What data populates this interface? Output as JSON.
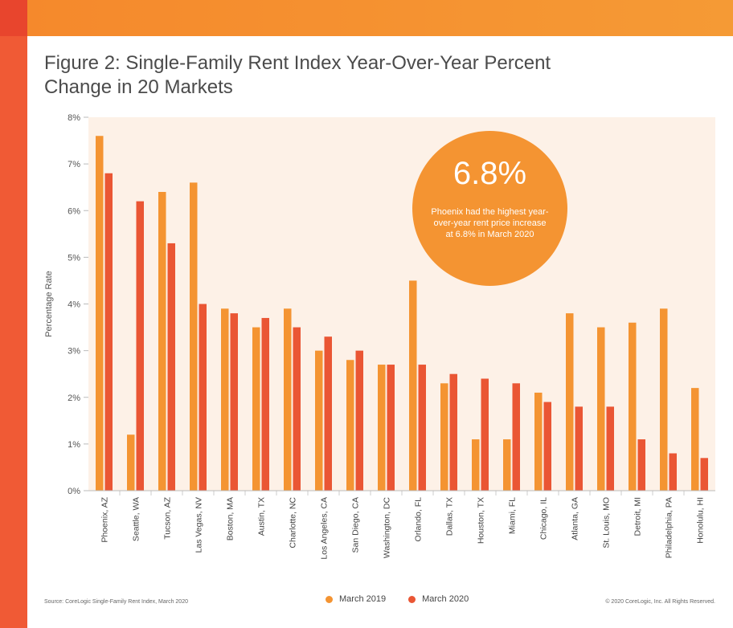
{
  "title": "Figure 2: Single-Family Rent Index Year-Over-Year Percent Change in 20 Markets",
  "source": "Source: CoreLogic Single-Family Rent Index, March 2020",
  "copyright": "© 2020 CoreLogic, Inc. All Rights Reserved.",
  "callout": {
    "value": "6.8%",
    "text": "Phoenix had the highest year-over-year rent price increase at 6.8% in March 2020"
  },
  "colors": {
    "series_2019": "#f49432",
    "series_2020": "#ea5634",
    "plot_bg": "#fdf1e7",
    "top_bar": "#f59a35",
    "left_bar": "#f05a35"
  },
  "chart_data": {
    "type": "bar",
    "ylabel": "Percentage Rate",
    "xlabel": "",
    "ylim": [
      0,
      8
    ],
    "yticks": [
      "0%",
      "1%",
      "2%",
      "3%",
      "4%",
      "5%",
      "6%",
      "7%",
      "8%"
    ],
    "legend_position": "bottom",
    "categories": [
      "Phoenix, AZ",
      "Seattle, WA",
      "Tucson, AZ",
      "Las Vegas, NV",
      "Boston, MA",
      "Austin, TX",
      "Charlotte, NC",
      "Los Angeles, CA",
      "San Diego, CA",
      "Washington, DC",
      "Orlando, FL",
      "Dallas, TX",
      "Houston, TX",
      "Miami, FL",
      "Chicago, IL",
      "Atlanta, GA",
      "St. Louis, MO",
      "Detroit, MI",
      "Philadelphia, PA",
      "Honolulu, HI"
    ],
    "series": [
      {
        "name": "March 2019",
        "values": [
          7.6,
          1.2,
          6.4,
          6.6,
          3.9,
          3.5,
          3.9,
          3.0,
          2.8,
          2.7,
          4.5,
          2.3,
          1.1,
          1.1,
          2.1,
          3.8,
          3.5,
          3.6,
          3.9,
          2.2
        ]
      },
      {
        "name": "March 2020",
        "values": [
          6.8,
          6.2,
          5.3,
          4.0,
          3.8,
          3.7,
          3.5,
          3.3,
          3.0,
          2.7,
          2.7,
          2.5,
          2.4,
          2.3,
          1.9,
          1.8,
          1.8,
          1.1,
          0.8,
          0.7
        ]
      }
    ]
  }
}
